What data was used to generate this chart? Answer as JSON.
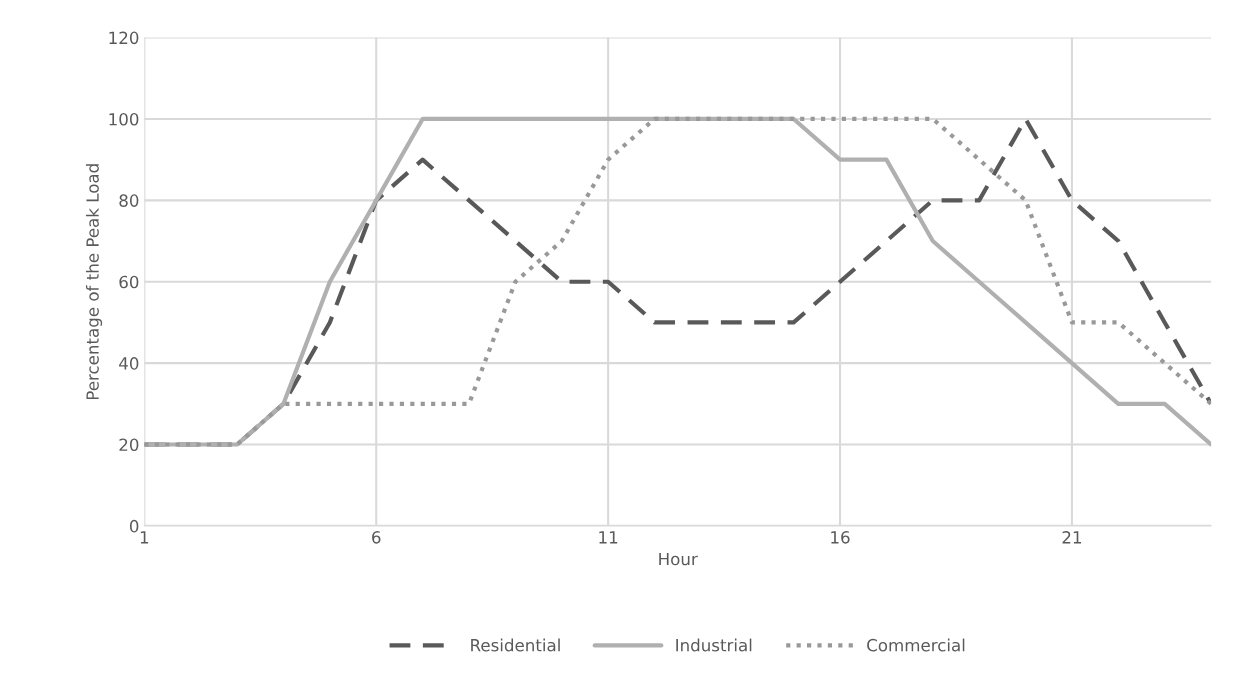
{
  "chart_data": {
    "type": "line",
    "xlabel": "Hour",
    "ylabel": "Percentage of the Peak Load",
    "x": [
      1,
      2,
      3,
      4,
      5,
      6,
      7,
      8,
      9,
      10,
      11,
      12,
      13,
      14,
      15,
      16,
      17,
      18,
      19,
      20,
      21,
      22,
      23,
      24
    ],
    "series": [
      {
        "name": "Residential",
        "color": "#595959",
        "line_style": "dashed",
        "values": [
          20,
          20,
          20,
          30,
          50,
          80,
          90,
          80,
          70,
          60,
          60,
          50,
          50,
          50,
          50,
          60,
          70,
          80,
          80,
          100,
          80,
          70,
          50,
          30
        ]
      },
      {
        "name": "Industrial",
        "color": "#b0b0b0",
        "line_style": "solid",
        "values": [
          20,
          20,
          20,
          30,
          60,
          80,
          100,
          100,
          100,
          100,
          100,
          100,
          100,
          100,
          100,
          90,
          90,
          70,
          60,
          50,
          40,
          30,
          30,
          20
        ]
      },
      {
        "name": "Commercial",
        "color": "#999999",
        "line_style": "dotted",
        "values": [
          20,
          20,
          20,
          30,
          30,
          30,
          30,
          30,
          60,
          70,
          90,
          100,
          100,
          100,
          100,
          100,
          100,
          100,
          90,
          80,
          50,
          50,
          40,
          30
        ]
      }
    ],
    "xlim": [
      1,
      24
    ],
    "xticks": [
      1,
      6,
      11,
      16,
      21
    ],
    "ylim": [
      0,
      120
    ],
    "yticks": [
      0,
      20,
      40,
      60,
      80,
      100,
      120
    ],
    "grid": true,
    "legend": "bottom",
    "marker": "none"
  }
}
